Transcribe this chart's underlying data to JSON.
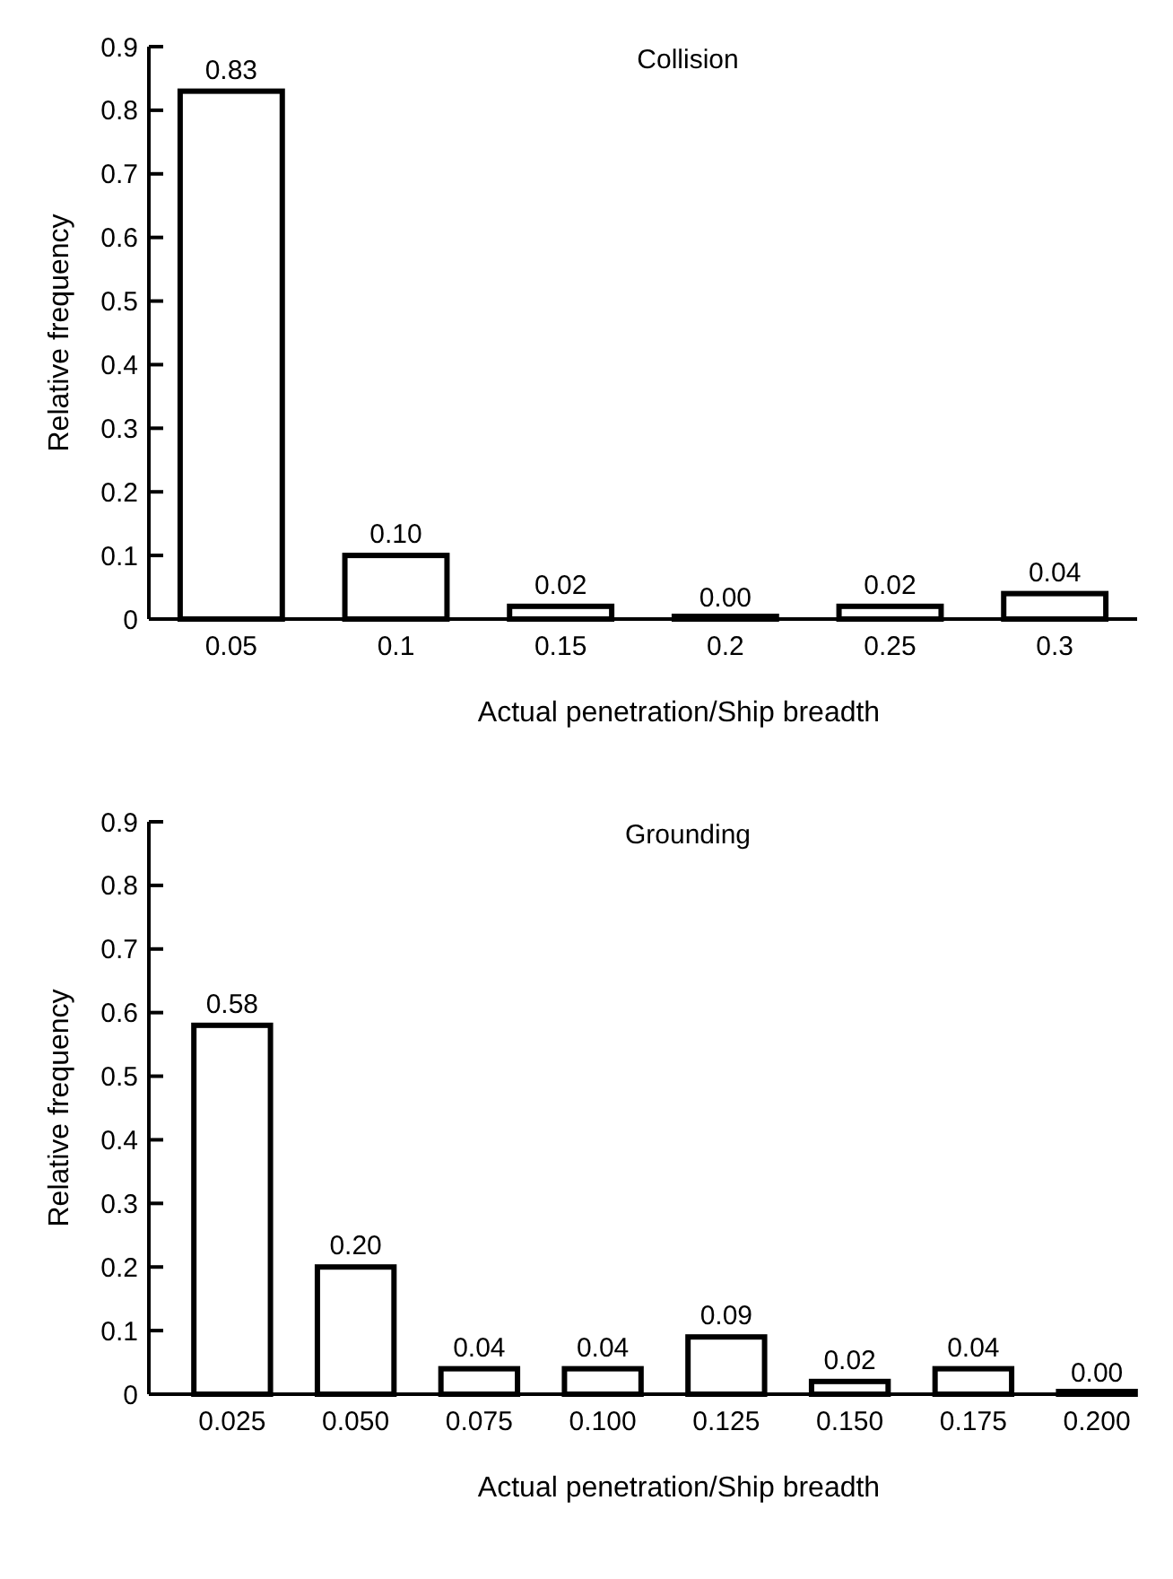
{
  "chart_data": [
    {
      "type": "bar",
      "title": "Collision",
      "xlabel": "Actual penetration/Ship breadth",
      "ylabel": "Relative frequency",
      "categories": [
        "0.05",
        "0.1",
        "0.15",
        "0.2",
        "0.25",
        "0.3"
      ],
      "values": [
        0.83,
        0.1,
        0.02,
        0.0,
        0.02,
        0.04
      ],
      "value_labels": [
        "0.83",
        "0.10",
        "0.02",
        "0.00",
        "0.02",
        "0.04"
      ],
      "color": "#ffffff",
      "ylim": [
        0,
        0.9
      ],
      "yticks": [
        0,
        0.1,
        0.2,
        0.3,
        0.4,
        0.5,
        0.6,
        0.7,
        0.8,
        0.9
      ]
    },
    {
      "type": "bar",
      "title": "Grounding",
      "xlabel": "Actual penetration/Ship breadth",
      "ylabel": "Relative frequency",
      "categories": [
        "0.025",
        "0.050",
        "0.075",
        "0.100",
        "0.125",
        "0.150",
        "0.175",
        "0.200"
      ],
      "values": [
        0.58,
        0.2,
        0.04,
        0.04,
        0.09,
        0.02,
        0.04,
        0.0
      ],
      "value_labels": [
        "0.58",
        "0.20",
        "0.04",
        "0.04",
        "0.09",
        "0.02",
        "0.04",
        "0.00"
      ],
      "color": "#ffffff",
      "ylim": [
        0,
        0.9
      ],
      "yticks": [
        0,
        0.1,
        0.2,
        0.3,
        0.4,
        0.5,
        0.6,
        0.7,
        0.8,
        0.9
      ]
    }
  ]
}
